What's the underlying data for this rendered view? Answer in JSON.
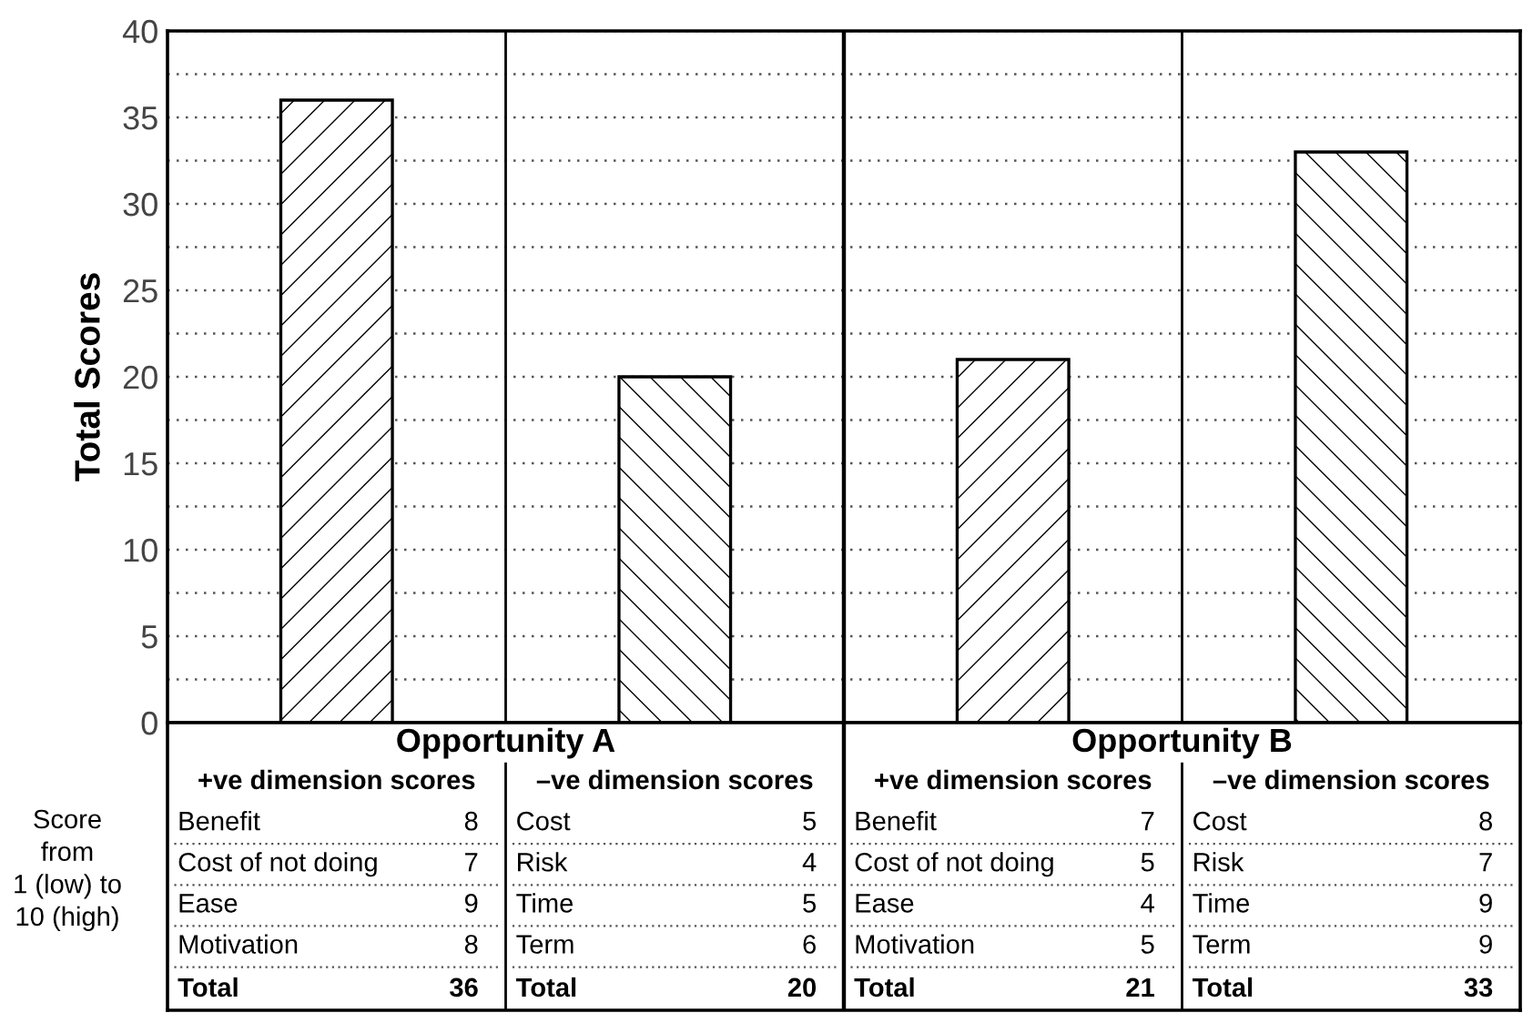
{
  "chart_data": {
    "type": "bar",
    "ylabel": "Total Scores",
    "categories": [
      null,
      null,
      null,
      null
    ],
    "values": [
      36,
      20,
      21,
      33
    ],
    "value_labels": [
      "36",
      "20",
      "21",
      "33"
    ],
    "colors": [
      "#000000",
      "#000000",
      "#000000",
      "#000000"
    ],
    "ylim": [
      0,
      40
    ],
    "yticks": [
      0,
      {
        "value": 2.5,
        "label": null
      },
      5,
      {
        "value": 7.5,
        "label": null
      },
      10,
      {
        "value": 12.5,
        "label": null
      },
      15,
      {
        "value": 17.5,
        "label": null
      },
      20,
      {
        "value": 22.5,
        "label": null
      },
      25,
      {
        "value": 27.5,
        "label": null
      },
      30,
      {
        "value": 32.5,
        "label": null
      },
      35,
      {
        "value": 37.5,
        "label": null
      },
      40
    ],
    "grid": "y",
    "annotations": [
      "Score\nfrom\n1 (low) to\n10 (high)",
      "Opportunity A",
      "Opportunity B",
      "+ve dimension scores",
      "–ve dimension scores",
      "+ve dimension scores",
      "–ve dimension scores",
      "Benefit",
      "8",
      "Cost of not doing",
      "7",
      "Ease",
      "9",
      "Motivation",
      "8",
      "Total",
      "Cost",
      "5",
      "Risk",
      "4",
      "Time",
      "5",
      "Term",
      "6",
      "Total",
      "Benefit",
      "7",
      "Cost of not doing",
      "5",
      "Ease",
      "4",
      "Motivation",
      "5",
      "Total",
      "Cost",
      "8",
      "Risk",
      "7",
      "Time",
      "9",
      "Term",
      "9",
      "Total"
    ]
  }
}
